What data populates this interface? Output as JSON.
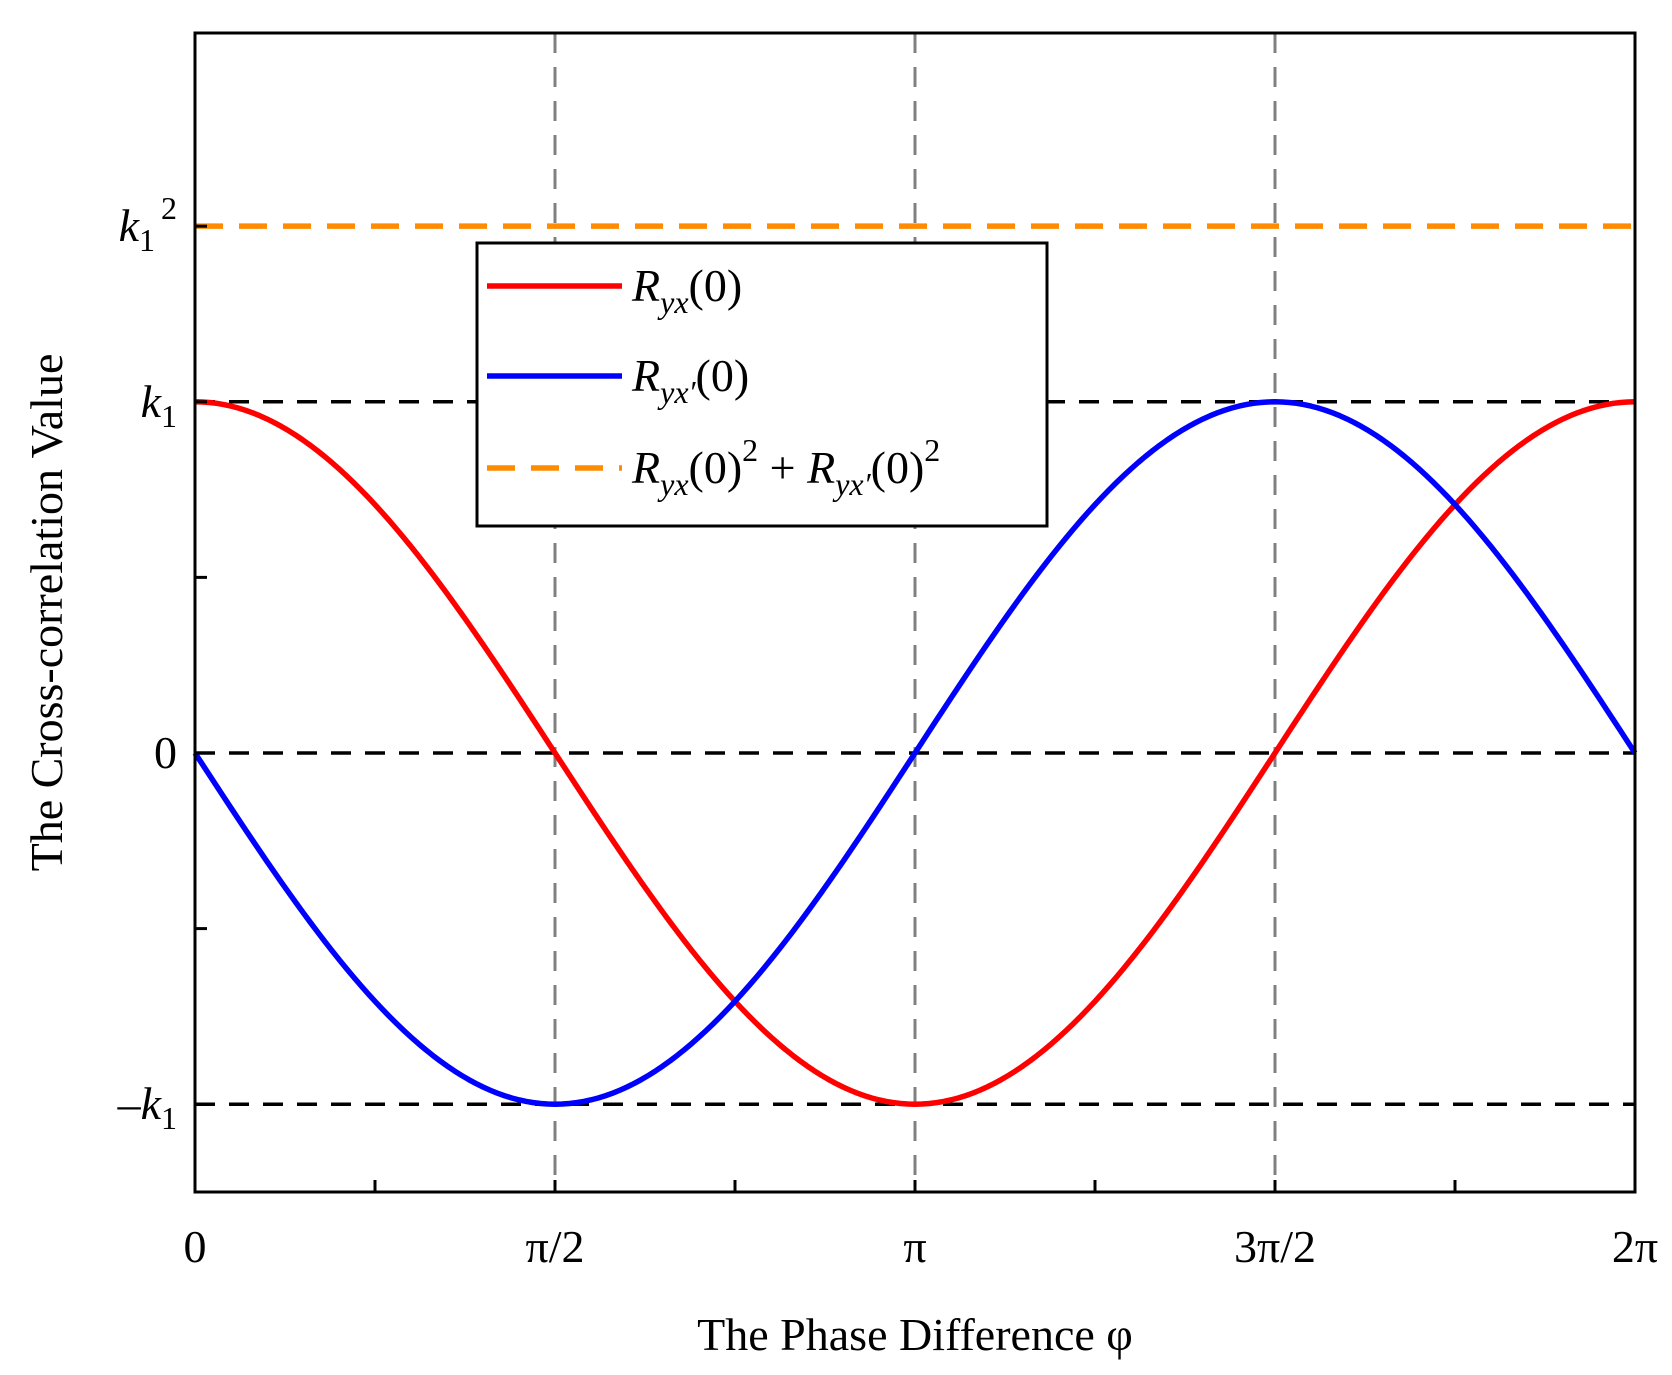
{
  "chart_data": {
    "type": "line",
    "xlabel": "The Phase Difference φ",
    "ylabel": "The Cross-correlation Value",
    "xlim": [
      0,
      6.283185307
    ],
    "ylim": [
      -1.25,
      2.05
    ],
    "x_ticks": [
      {
        "value": 0,
        "label": "0"
      },
      {
        "value": 1.570796327,
        "label": "π/2"
      },
      {
        "value": 3.141592654,
        "label": "π"
      },
      {
        "value": 4.71238898,
        "label": "3π/2"
      },
      {
        "value": 6.283185307,
        "label": "2π"
      }
    ],
    "x_minor_ticks": [
      0.785398163,
      2.35619449,
      3.926990817,
      5.497787144
    ],
    "y_ticks": [
      {
        "value": 1.5,
        "label": "k1²",
        "base": "k",
        "sub": "1",
        "sup": "2",
        "sign": ""
      },
      {
        "value": 1.0,
        "label": "k1",
        "base": "k",
        "sub": "1",
        "sup": "",
        "sign": ""
      },
      {
        "value": 0.0,
        "label": "0",
        "base": "0",
        "sub": "",
        "sup": "",
        "sign": ""
      },
      {
        "value": -1.0,
        "label": "−k1",
        "base": "k",
        "sub": "1",
        "sup": "",
        "sign": "–"
      }
    ],
    "y_minor_ticks": [
      0.5,
      -0.5
    ],
    "reference_lines": {
      "horizontal": [
        {
          "value": 1.0,
          "color": "#000000"
        },
        {
          "value": 0.0,
          "color": "#000000"
        },
        {
          "value": -1.0,
          "color": "#000000"
        }
      ],
      "vertical": [
        {
          "value": 1.570796327,
          "color": "#808080"
        },
        {
          "value": 3.141592654,
          "color": "#808080"
        },
        {
          "value": 4.71238898,
          "color": "#808080"
        }
      ]
    },
    "series": [
      {
        "name": "Ryx(0)",
        "function": "k1*cos(φ)",
        "color": "#ff0000",
        "dash": false,
        "x": [
          0,
          0.3927,
          0.7854,
          1.1781,
          1.5708,
          1.9635,
          2.3562,
          2.7489,
          3.1416,
          3.5343,
          3.927,
          4.3197,
          4.7124,
          5.1051,
          5.4978,
          5.8905,
          6.2832
        ],
        "values": [
          1.0,
          0.924,
          0.707,
          0.383,
          0.0,
          -0.383,
          -0.707,
          -0.924,
          -1.0,
          -0.924,
          -0.707,
          -0.383,
          0.0,
          0.383,
          0.707,
          0.924,
          1.0
        ]
      },
      {
        "name": "Ryx'(0)",
        "function": "-k1*sin(φ)",
        "color": "#0000ff",
        "dash": false,
        "x": [
          0,
          0.3927,
          0.7854,
          1.1781,
          1.5708,
          1.9635,
          2.3562,
          2.7489,
          3.1416,
          3.5343,
          3.927,
          4.3197,
          4.7124,
          5.1051,
          5.4978,
          5.8905,
          6.2832
        ],
        "values": [
          0.0,
          -0.383,
          -0.707,
          -0.924,
          -1.0,
          -0.924,
          -0.707,
          -0.383,
          0.0,
          0.383,
          0.707,
          0.924,
          1.0,
          0.924,
          0.707,
          0.383,
          0.0
        ]
      },
      {
        "name": "Ryx(0)² + Ryx'(0)²",
        "function": "k1^2 (constant)",
        "color": "#ff8c00",
        "dash": true,
        "x": [
          0,
          6.2832
        ],
        "values": [
          1.5,
          1.5
        ]
      }
    ],
    "legend": {
      "placement": "top-center",
      "entries": [
        {
          "label": "Ryx(0)",
          "base": "R",
          "sub": "yx",
          "tail": "(0)"
        },
        {
          "label": "Ryx'(0)",
          "base": "R",
          "sub": "yx′",
          "tail": "(0)"
        },
        {
          "label": "Ryx(0)² + Ryx'(0)²",
          "base": "R",
          "sub": "yx",
          "tail": "(0)",
          "sup": "2",
          "joiner": " + ",
          "base2": "R",
          "sub2": "yx′",
          "tail2": "(0)",
          "sup2": "2"
        }
      ]
    }
  }
}
